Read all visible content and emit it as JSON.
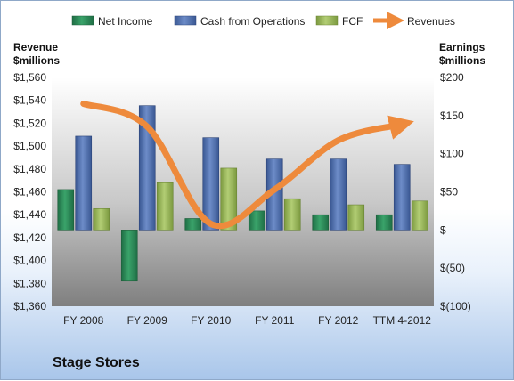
{
  "company_name": "Stage Stores",
  "left_axis_title": [
    "Revenue",
    "$millions"
  ],
  "right_axis_title": [
    "Earnings",
    "$millions"
  ],
  "colors": {
    "net_income": "#2e8b57",
    "cash_from_operations": "#4f6fb0",
    "fcf": "#96b458",
    "revenues": "#ee8a3c"
  },
  "chart_data": {
    "type": "bar",
    "categories": [
      "FY 2008",
      "FY 2009",
      "FY 2010",
      "FY 2011",
      "FY 2012",
      "TTM 4-2012"
    ],
    "series": [
      {
        "name": "Net Income",
        "axis": "right",
        "values": [
          53,
          -67,
          15,
          25,
          20,
          20
        ]
      },
      {
        "name": "Cash from Operations",
        "axis": "right",
        "values": [
          123,
          163,
          121,
          93,
          93,
          86
        ]
      },
      {
        "name": "FCF",
        "axis": "right",
        "values": [
          28,
          62,
          81,
          41,
          33,
          38
        ]
      },
      {
        "name": "Revenues",
        "axis": "left",
        "type": "line",
        "values": [
          1537,
          1517,
          1432,
          1462,
          1505,
          1519
        ]
      }
    ],
    "left_axis": {
      "ylim": [
        1360,
        1560
      ],
      "ticks": [
        "$1,560",
        "$1,540",
        "$1,520",
        "$1,500",
        "$1,480",
        "$1,460",
        "$1,440",
        "$1,420",
        "$1,400",
        "$1,380",
        "$1,360"
      ]
    },
    "right_axis": {
      "ylim": [
        -100,
        200
      ],
      "ticks": [
        "$200",
        "$150",
        "$100",
        "$50",
        "$-",
        "$(50)",
        "$(100)"
      ]
    },
    "legend_position": "top",
    "grid": false
  }
}
